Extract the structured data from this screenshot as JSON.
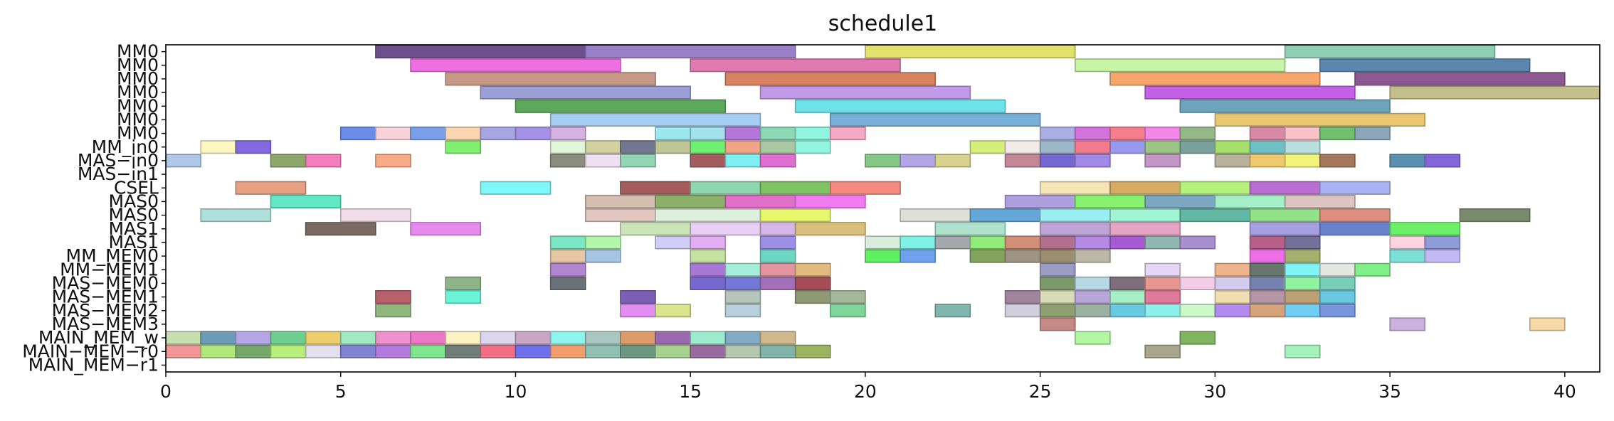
{
  "chart_data": {
    "type": "gantt",
    "title": "schedule1",
    "xlim": [
      0,
      41
    ],
    "x_ticks": [
      0,
      5,
      10,
      15,
      20,
      25,
      30,
      35,
      40
    ],
    "x_tick_labels": [
      "0",
      "5",
      "10",
      "15",
      "20",
      "25",
      "30",
      "35",
      "40"
    ],
    "grid": false,
    "rows": [
      "MM0",
      "MM0",
      "MM0",
      "MM0",
      "MM0",
      "MM0",
      "MM0",
      "MM_in0",
      "MAS−in0",
      "MAS−in1",
      "CSEL",
      "MAS0",
      "MAS0",
      "MAS1",
      "MAS1",
      "MM_MEM0",
      "MM−MEM1",
      "MAS−MEM0",
      "MAS−MEM1",
      "MAS−MEM2",
      "MAS−MEM3",
      "MAIN_MEM_w",
      "MAIN−MEM−r0",
      "MAIN_MEM−r1"
    ],
    "tasks": [
      [
        [
          6,
          12,
          "#6d4f8e"
        ],
        [
          12,
          18,
          "#9b7fc9"
        ],
        [
          20,
          26,
          "#e2e26b"
        ],
        [
          32,
          38,
          "#8fd0b4"
        ]
      ],
      [
        [
          7,
          13,
          "#ee6fe0"
        ],
        [
          15,
          21,
          "#e07ab0"
        ],
        [
          26,
          32,
          "#c8f5a6"
        ],
        [
          33,
          39,
          "#5b86b0"
        ]
      ],
      [
        [
          8,
          14,
          "#c69a86"
        ],
        [
          16,
          22,
          "#d9835f"
        ],
        [
          27,
          33,
          "#f7a76b"
        ],
        [
          34,
          40,
          "#8e5892"
        ]
      ],
      [
        [
          9,
          15,
          "#9aa0d6"
        ],
        [
          17,
          23,
          "#c19ae8"
        ],
        [
          28,
          34,
          "#c460e6"
        ],
        [
          35,
          41,
          "#c4c08c"
        ]
      ],
      [
        [
          10,
          16,
          "#5ca95c"
        ],
        [
          18,
          24,
          "#6fe3ec"
        ],
        [
          29,
          35,
          "#6ea4bb"
        ]
      ],
      [
        [
          11,
          17,
          "#a6cdf3"
        ],
        [
          19,
          25,
          "#78b1d8"
        ],
        [
          30,
          36,
          "#ebc86f"
        ]
      ],
      [
        [
          5,
          6,
          "#6a8ee8"
        ],
        [
          6,
          7,
          "#f7d2d8"
        ],
        [
          7,
          8,
          "#7aa0ea"
        ],
        [
          8,
          9,
          "#fad7b1"
        ],
        [
          9,
          10,
          "#a7a5e2"
        ],
        [
          10,
          11,
          "#a592e6"
        ],
        [
          11,
          12,
          "#d6b2e0"
        ],
        [
          14,
          15,
          "#9de8ee"
        ],
        [
          15,
          16,
          "#a1e2ed"
        ],
        [
          16,
          17,
          "#b277d8"
        ],
        [
          17,
          18,
          "#8fd8b6"
        ],
        [
          18,
          19,
          "#8ff5de"
        ],
        [
          19,
          20,
          "#f5a9c4"
        ],
        [
          25,
          26,
          "#aab0e6"
        ],
        [
          26,
          27,
          "#d173d8"
        ],
        [
          27,
          28,
          "#f47e8b"
        ],
        [
          28,
          29,
          "#f488e8"
        ],
        [
          29,
          30,
          "#94b888"
        ],
        [
          31,
          32,
          "#d889a5"
        ],
        [
          32,
          33,
          "#f8c2c8"
        ],
        [
          33,
          34,
          "#70c070"
        ],
        [
          34,
          35,
          "#8ea6b9"
        ]
      ],
      [
        [
          1,
          2,
          "#fdf8bf"
        ],
        [
          2,
          3,
          "#8368de"
        ],
        [
          8,
          9,
          "#7ff070"
        ],
        [
          11,
          12,
          "#e0f8d8"
        ],
        [
          12,
          13,
          "#d4d1a0"
        ],
        [
          13,
          14,
          "#727690"
        ],
        [
          14,
          15,
          "#bfc594"
        ],
        [
          15,
          16,
          "#6fef6f"
        ],
        [
          16,
          17,
          "#f1a486"
        ],
        [
          17,
          18,
          "#a8c9a2"
        ],
        [
          18,
          19,
          "#92f5e0"
        ],
        [
          23,
          24,
          "#d6ee7a"
        ],
        [
          24,
          25,
          "#f2ebe8"
        ],
        [
          25,
          26,
          "#9ab8c8"
        ],
        [
          26,
          27,
          "#f47a90"
        ],
        [
          27,
          28,
          "#9898f0"
        ],
        [
          28,
          29,
          "#9ac586"
        ],
        [
          29,
          30,
          "#7aa09e"
        ],
        [
          30,
          31,
          "#a6e06a"
        ],
        [
          31,
          32,
          "#6fc0c4"
        ],
        [
          32,
          33,
          "#b9dede"
        ]
      ],
      [
        [
          0,
          1,
          "#b0c8e8"
        ],
        [
          3,
          4,
          "#8da86a"
        ],
        [
          4,
          5,
          "#f57fbd"
        ],
        [
          6,
          7,
          "#f9aa86"
        ],
        [
          11,
          12,
          "#8a8e7e"
        ],
        [
          12,
          13,
          "#efe0f4"
        ],
        [
          13,
          14,
          "#94d6b4"
        ],
        [
          15,
          16,
          "#a55c5c"
        ],
        [
          16,
          17,
          "#7ef0f4"
        ],
        [
          17,
          18,
          "#df6fd0"
        ],
        [
          20,
          21,
          "#83c985"
        ],
        [
          21,
          22,
          "#b3a6e4"
        ],
        [
          22,
          23,
          "#d8d38e"
        ],
        [
          24,
          25,
          "#c48798"
        ],
        [
          25,
          26,
          "#7568d2"
        ],
        [
          26,
          27,
          "#a08ae6"
        ],
        [
          28,
          29,
          "#c296c6"
        ],
        [
          30,
          31,
          "#b8b29c"
        ],
        [
          31,
          32,
          "#f0c96e"
        ],
        [
          32,
          33,
          "#f1f57a"
        ],
        [
          33,
          34,
          "#a5785c"
        ],
        [
          35,
          36,
          "#5c90b0"
        ],
        [
          36,
          37,
          "#8366d8"
        ]
      ],
      [],
      [
        [
          2,
          4,
          "#e8a083"
        ],
        [
          9,
          11,
          "#7ef8fa"
        ],
        [
          13,
          15,
          "#a55c5c"
        ],
        [
          15,
          17,
          "#8ed6ae"
        ],
        [
          17,
          19,
          "#7fc462"
        ],
        [
          19,
          21,
          "#f58a7e"
        ],
        [
          25,
          27,
          "#f7e4b4"
        ],
        [
          27,
          29,
          "#d6ac62"
        ],
        [
          29,
          31,
          "#b5f27a"
        ],
        [
          31,
          33,
          "#bb6ed2"
        ],
        [
          33,
          35,
          "#a8b4f4"
        ]
      ],
      [
        [
          3,
          5,
          "#62e8c4"
        ],
        [
          12,
          14,
          "#d4beb0"
        ],
        [
          14,
          16,
          "#8db06a"
        ],
        [
          16,
          18,
          "#e070c8"
        ],
        [
          18,
          20,
          "#f07cef"
        ],
        [
          24,
          26,
          "#ad9fde"
        ],
        [
          26,
          28,
          "#88f270"
        ],
        [
          28,
          30,
          "#7ba8c0"
        ],
        [
          30,
          32,
          "#a4eec8"
        ],
        [
          32,
          34,
          "#dcc4c0"
        ]
      ],
      [
        [
          1,
          3,
          "#b0e0dc"
        ],
        [
          5,
          7,
          "#f2dcea"
        ],
        [
          12,
          14,
          "#e2c6c0"
        ],
        [
          14,
          17,
          "#ddf0dc"
        ],
        [
          17,
          19,
          "#e7f86d"
        ],
        [
          21,
          23,
          "#dfe0d8"
        ],
        [
          23,
          25,
          "#63a8d8"
        ],
        [
          25,
          27,
          "#98eef0"
        ],
        [
          27,
          29,
          "#9ff5d4"
        ],
        [
          29,
          31,
          "#62b8a4"
        ],
        [
          31,
          33,
          "#91e289"
        ],
        [
          33,
          35,
          "#de8f80"
        ],
        [
          37,
          39,
          "#7a8a6c"
        ]
      ],
      [
        [
          4,
          6,
          "#7a6a62"
        ],
        [
          7,
          9,
          "#e68aee"
        ],
        [
          13,
          15,
          "#cce5b8"
        ],
        [
          15,
          17,
          "#e8d0f4"
        ],
        [
          17,
          18,
          "#d6b7e8"
        ],
        [
          18,
          20,
          "#d9c07c"
        ],
        [
          22,
          24,
          "#aee2cc"
        ],
        [
          25,
          27,
          "#bfa4d6"
        ],
        [
          27,
          29,
          "#e6a4c4"
        ],
        [
          31,
          33,
          "#a6a0e2"
        ],
        [
          33,
          35,
          "#6b82cc"
        ],
        [
          35,
          37,
          "#6cf06a"
        ]
      ],
      [
        [
          11,
          12,
          "#7ae8c6"
        ],
        [
          12,
          13,
          "#b2f7aa"
        ],
        [
          14,
          15,
          "#d0cdf6"
        ],
        [
          15,
          16,
          "#e3aef2"
        ],
        [
          17,
          18,
          "#9e90e8"
        ],
        [
          20,
          21,
          "#d8ecdc"
        ],
        [
          21,
          22,
          "#7ef2e4"
        ],
        [
          22,
          23,
          "#a4a8ac"
        ],
        [
          23,
          24,
          "#92ec7a"
        ],
        [
          24,
          25,
          "#d28f77"
        ],
        [
          25,
          26,
          "#b2708e"
        ],
        [
          26,
          27,
          "#b58ae4"
        ],
        [
          27,
          28,
          "#a85ad4"
        ],
        [
          28,
          29,
          "#91b8b0"
        ],
        [
          29,
          30,
          "#a98ed0"
        ],
        [
          31,
          32,
          "#b8608a"
        ],
        [
          32,
          33,
          "#73709c"
        ],
        [
          35,
          36,
          "#fbd4e0"
        ],
        [
          36,
          37,
          "#8e9cd8"
        ]
      ],
      [
        [
          11,
          12,
          "#e9c6a3"
        ],
        [
          12,
          13,
          "#a6c4e4"
        ],
        [
          15,
          16,
          "#c2e4a0"
        ],
        [
          17,
          18,
          "#6cd8c4"
        ],
        [
          20,
          21,
          "#5ef05e"
        ],
        [
          21,
          22,
          "#6ea2ef"
        ],
        [
          23,
          24,
          "#82a45c"
        ],
        [
          24,
          25,
          "#9e9482"
        ],
        [
          25,
          26,
          "#9a8e6e"
        ],
        [
          26,
          27,
          "#bcb8a8"
        ],
        [
          31,
          32,
          "#ee6ee8"
        ],
        [
          32,
          33,
          "#a4b06c"
        ],
        [
          35,
          36,
          "#7ce0d8"
        ],
        [
          36,
          37,
          "#c3b9f4"
        ]
      ],
      [
        [
          11,
          12,
          "#b386d2"
        ],
        [
          15,
          16,
          "#a778d6"
        ],
        [
          16,
          17,
          "#a6eed9"
        ],
        [
          17,
          18,
          "#e3959f"
        ],
        [
          18,
          19,
          "#e3bb81"
        ],
        [
          25,
          26,
          "#9c9cc4"
        ],
        [
          28,
          29,
          "#e5d8f5"
        ],
        [
          30,
          31,
          "#eeb58c"
        ],
        [
          31,
          32,
          "#67776b"
        ],
        [
          32,
          33,
          "#7ff5f6"
        ],
        [
          33,
          34,
          "#e4e7e0"
        ],
        [
          34,
          35,
          "#82f088"
        ]
      ],
      [
        [
          8,
          9,
          "#8fb487"
        ],
        [
          11,
          12,
          "#6a7277"
        ],
        [
          15,
          16,
          "#7569d0"
        ],
        [
          16,
          17,
          "#7478d8"
        ],
        [
          17,
          18,
          "#a36fb9"
        ],
        [
          18,
          19,
          "#a64c59"
        ],
        [
          25,
          26,
          "#7a9a6a"
        ],
        [
          26,
          27,
          "#b8d8e6"
        ],
        [
          27,
          28,
          "#7e6e7c"
        ],
        [
          28,
          29,
          "#e7988e"
        ],
        [
          29,
          30,
          "#f3cde6"
        ],
        [
          30,
          31,
          "#d2ccee"
        ],
        [
          31,
          32,
          "#7682b0"
        ],
        [
          32,
          33,
          "#8ff39f"
        ],
        [
          33,
          34,
          "#78d0b8"
        ]
      ],
      [
        [
          6,
          7,
          "#b7626a"
        ],
        [
          8,
          9,
          "#6cf4d8"
        ],
        [
          13,
          14,
          "#7b61b5"
        ],
        [
          16,
          17,
          "#b6c6bc"
        ],
        [
          18,
          19,
          "#8f9a74"
        ],
        [
          19,
          20,
          "#a6b89c"
        ],
        [
          24,
          25,
          "#a1849e"
        ],
        [
          25,
          26,
          "#d8dcb6"
        ],
        [
          26,
          27,
          "#b8a6d8"
        ],
        [
          27,
          28,
          "#a6f0c6"
        ],
        [
          28,
          29,
          "#e07a9c"
        ],
        [
          30,
          31,
          "#f0dfb0"
        ],
        [
          31,
          32,
          "#b596a6"
        ],
        [
          32,
          33,
          "#bca074"
        ],
        [
          33,
          34,
          "#6cc8e0"
        ]
      ],
      [
        [
          6,
          7,
          "#90b87c"
        ],
        [
          13,
          14,
          "#e48ef4"
        ],
        [
          14,
          15,
          "#d8e48e"
        ],
        [
          16,
          17,
          "#b6d0de"
        ],
        [
          19,
          20,
          "#7fd69a"
        ],
        [
          22,
          23,
          "#80b8b0"
        ],
        [
          24,
          25,
          "#d1cede"
        ],
        [
          25,
          26,
          "#8fa070"
        ],
        [
          26,
          27,
          "#9ab0a0"
        ],
        [
          27,
          28,
          "#68c9e2"
        ],
        [
          28,
          29,
          "#8ef0ea"
        ],
        [
          29,
          30,
          "#cbf9c8"
        ],
        [
          30,
          31,
          "#b28af0"
        ],
        [
          31,
          32,
          "#d6a27a"
        ],
        [
          32,
          33,
          "#70cef4"
        ],
        [
          33,
          34,
          "#7896dc"
        ]
      ],
      [
        [
          25,
          26,
          "#c58a84"
        ],
        [
          35,
          36,
          "#cbb2dd"
        ],
        [
          39,
          40,
          "#f7d9a7"
        ]
      ],
      [
        [
          0,
          1,
          "#c7dfae"
        ],
        [
          1,
          2,
          "#6d9db6"
        ],
        [
          2,
          3,
          "#b6a6e8"
        ],
        [
          3,
          4,
          "#6ed090"
        ],
        [
          4,
          5,
          "#f0ce6c"
        ],
        [
          5,
          6,
          "#a1e9c4"
        ],
        [
          6,
          7,
          "#f090cc"
        ],
        [
          7,
          8,
          "#ea78c4"
        ],
        [
          8,
          9,
          "#fdf2c2"
        ],
        [
          9,
          10,
          "#dcd6ef"
        ],
        [
          10,
          11,
          "#cba6c4"
        ],
        [
          11,
          12,
          "#8ef6ec"
        ],
        [
          12,
          13,
          "#a9c7c0"
        ],
        [
          13,
          14,
          "#db9c6a"
        ],
        [
          14,
          15,
          "#9b6aae"
        ],
        [
          15,
          16,
          "#9eecd0"
        ],
        [
          16,
          17,
          "#82acc5"
        ],
        [
          17,
          18,
          "#cfb88c"
        ],
        [
          26,
          27,
          "#b2f7a1"
        ],
        [
          29,
          30,
          "#80b560"
        ]
      ],
      [
        [
          0,
          1,
          "#f29696"
        ],
        [
          1,
          2,
          "#b2e77a"
        ],
        [
          2,
          3,
          "#76a86c"
        ],
        [
          3,
          4,
          "#b7ef7a"
        ],
        [
          4,
          5,
          "#e5e0f0"
        ],
        [
          5,
          6,
          "#8084d2"
        ],
        [
          6,
          7,
          "#b47bdf"
        ],
        [
          7,
          8,
          "#7fe68e"
        ],
        [
          8,
          9,
          "#707d78"
        ],
        [
          9,
          10,
          "#f27086"
        ],
        [
          10,
          11,
          "#6e70ec"
        ],
        [
          11,
          12,
          "#f29d6a"
        ],
        [
          12,
          13,
          "#8fc0b0"
        ],
        [
          13,
          14,
          "#6c9780"
        ],
        [
          14,
          15,
          "#a5d38f"
        ],
        [
          15,
          16,
          "#9a6b9e"
        ],
        [
          16,
          17,
          "#b6c8b0"
        ],
        [
          17,
          18,
          "#80b4a8"
        ],
        [
          18,
          19,
          "#9cb460"
        ],
        [
          28,
          29,
          "#a8a68c"
        ],
        [
          32,
          33,
          "#a2f2ba"
        ]
      ]
    ]
  }
}
